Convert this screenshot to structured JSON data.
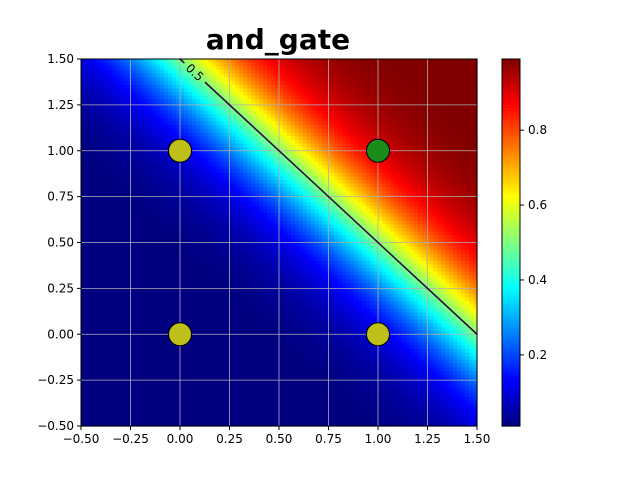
{
  "chart_data": {
    "type": "heatmap",
    "title": "and_gate",
    "xlabel": "",
    "ylabel": "",
    "xlim": [
      -0.5,
      1.5
    ],
    "ylim": [
      -0.5,
      1.5
    ],
    "x_ticks": [
      "−0.50",
      "−0.25",
      "0.00",
      "0.25",
      "0.50",
      "0.75",
      "1.00",
      "1.25",
      "1.50"
    ],
    "y_ticks": [
      "−0.50",
      "−0.25",
      "0.00",
      "0.25",
      "0.50",
      "0.75",
      "1.00",
      "1.25",
      "1.50"
    ],
    "grid": true,
    "colormap": "jet",
    "colorbar": {
      "range": [
        0.01,
        0.99
      ],
      "ticks": [
        "0.2",
        "0.4",
        "0.6",
        "0.8"
      ]
    },
    "decision_function": {
      "kind": "sigmoid",
      "w1": 4.3,
      "w2": 4.3,
      "bias": -6.45
    },
    "contour": {
      "level": 0.5,
      "label": "0.5",
      "color": "#2b0f3f"
    },
    "points": [
      {
        "x": 0,
        "y": 0,
        "label": 0,
        "color": "#bfbf1a"
      },
      {
        "x": 0,
        "y": 1,
        "label": 0,
        "color": "#bfbf1a"
      },
      {
        "x": 1,
        "y": 0,
        "label": 0,
        "color": "#bfbf1a"
      },
      {
        "x": 1,
        "y": 1,
        "label": 1,
        "color": "#1a8c1a"
      }
    ]
  }
}
